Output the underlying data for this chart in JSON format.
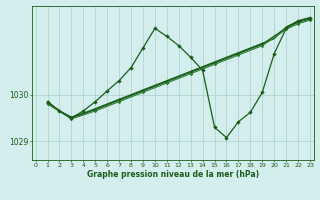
{
  "background_color": "#d4eeed",
  "grid_color": "#aacfcc",
  "line_color_dark": "#1a5c1a",
  "line_color_mid": "#2e7d32",
  "xlabel": "Graphe pression niveau de la mer (hPa)",
  "ylim": [
    1028.6,
    1031.9
  ],
  "xlim": [
    -0.3,
    23.3
  ],
  "yticks": [
    1029,
    1030
  ],
  "xticks": [
    0,
    1,
    2,
    3,
    4,
    5,
    6,
    7,
    8,
    9,
    10,
    11,
    12,
    13,
    14,
    15,
    16,
    17,
    18,
    19,
    20,
    21,
    22,
    23
  ],
  "line1_x": [
    1,
    2,
    3,
    4,
    5,
    6,
    7,
    8,
    9,
    10,
    11,
    12,
    13,
    14,
    15,
    16,
    17,
    18,
    19,
    20,
    21,
    22,
    23
  ],
  "line1_y": [
    1029.85,
    1029.65,
    1029.52,
    1029.6,
    1029.7,
    1029.8,
    1029.9,
    1030.0,
    1030.1,
    1030.2,
    1030.3,
    1030.4,
    1030.5,
    1030.6,
    1030.7,
    1030.8,
    1030.9,
    1031.0,
    1031.1,
    1031.2,
    1031.45,
    1031.58,
    1031.65
  ],
  "line2_x": [
    1,
    3,
    5,
    7,
    9,
    11,
    13,
    15,
    17,
    19,
    21,
    22,
    23
  ],
  "line2_y": [
    1029.82,
    1029.5,
    1029.68,
    1029.88,
    1030.08,
    1030.28,
    1030.48,
    1030.68,
    1030.88,
    1031.08,
    1031.43,
    1031.55,
    1031.62
  ],
  "line3_x": [
    1,
    3,
    5,
    7,
    9,
    11,
    13,
    15,
    17,
    19,
    21,
    22,
    23
  ],
  "line3_y": [
    1029.8,
    1029.48,
    1029.65,
    1029.85,
    1030.05,
    1030.25,
    1030.45,
    1030.65,
    1030.85,
    1031.05,
    1031.4,
    1031.52,
    1031.6
  ],
  "line_peak_x": [
    1,
    2,
    3,
    4,
    5,
    6,
    7,
    8,
    9,
    10,
    11,
    12,
    13,
    14,
    15,
    16,
    17,
    18,
    19,
    20,
    21,
    22,
    23
  ],
  "line_peak_y": [
    1029.85,
    1029.65,
    1029.5,
    1029.65,
    1029.85,
    1030.08,
    1030.3,
    1030.58,
    1031.0,
    1031.42,
    1031.25,
    1031.05,
    1030.8,
    1030.52,
    1029.3,
    1029.08,
    1029.42,
    1029.62,
    1030.05,
    1030.88,
    1031.42,
    1031.58,
    1031.65
  ]
}
